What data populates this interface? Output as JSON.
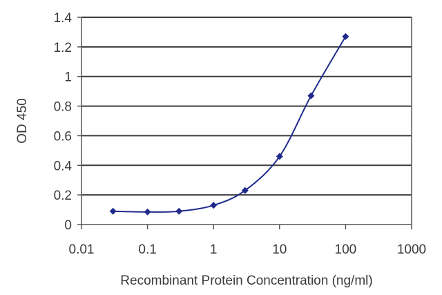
{
  "chart_data": {
    "type": "line",
    "title": "",
    "xlabel": "Recombinant Protein Concentration (ng/ml)",
    "ylabel": "OD 450",
    "x_scale": "log",
    "xlim": [
      0.01,
      1000
    ],
    "ylim": [
      0,
      1.4
    ],
    "x_ticks": [
      "0.01",
      "0.1",
      "1",
      "10",
      "100",
      "1000"
    ],
    "y_ticks": [
      "0",
      "0.2",
      "0.4",
      "0.6",
      "0.8",
      "1",
      "1.2",
      "1.4"
    ],
    "grid": "horizontal",
    "legend": "none",
    "colors": {
      "series": "#1f2a8c",
      "grid": "#3c3c3c",
      "axis": "#555555"
    },
    "series": [
      {
        "x": [
          0.03,
          0.1,
          0.3,
          1,
          3,
          10,
          30,
          100
        ],
        "y": [
          0.09,
          0.085,
          0.09,
          0.13,
          0.23,
          0.46,
          0.87,
          1.27
        ]
      }
    ]
  }
}
